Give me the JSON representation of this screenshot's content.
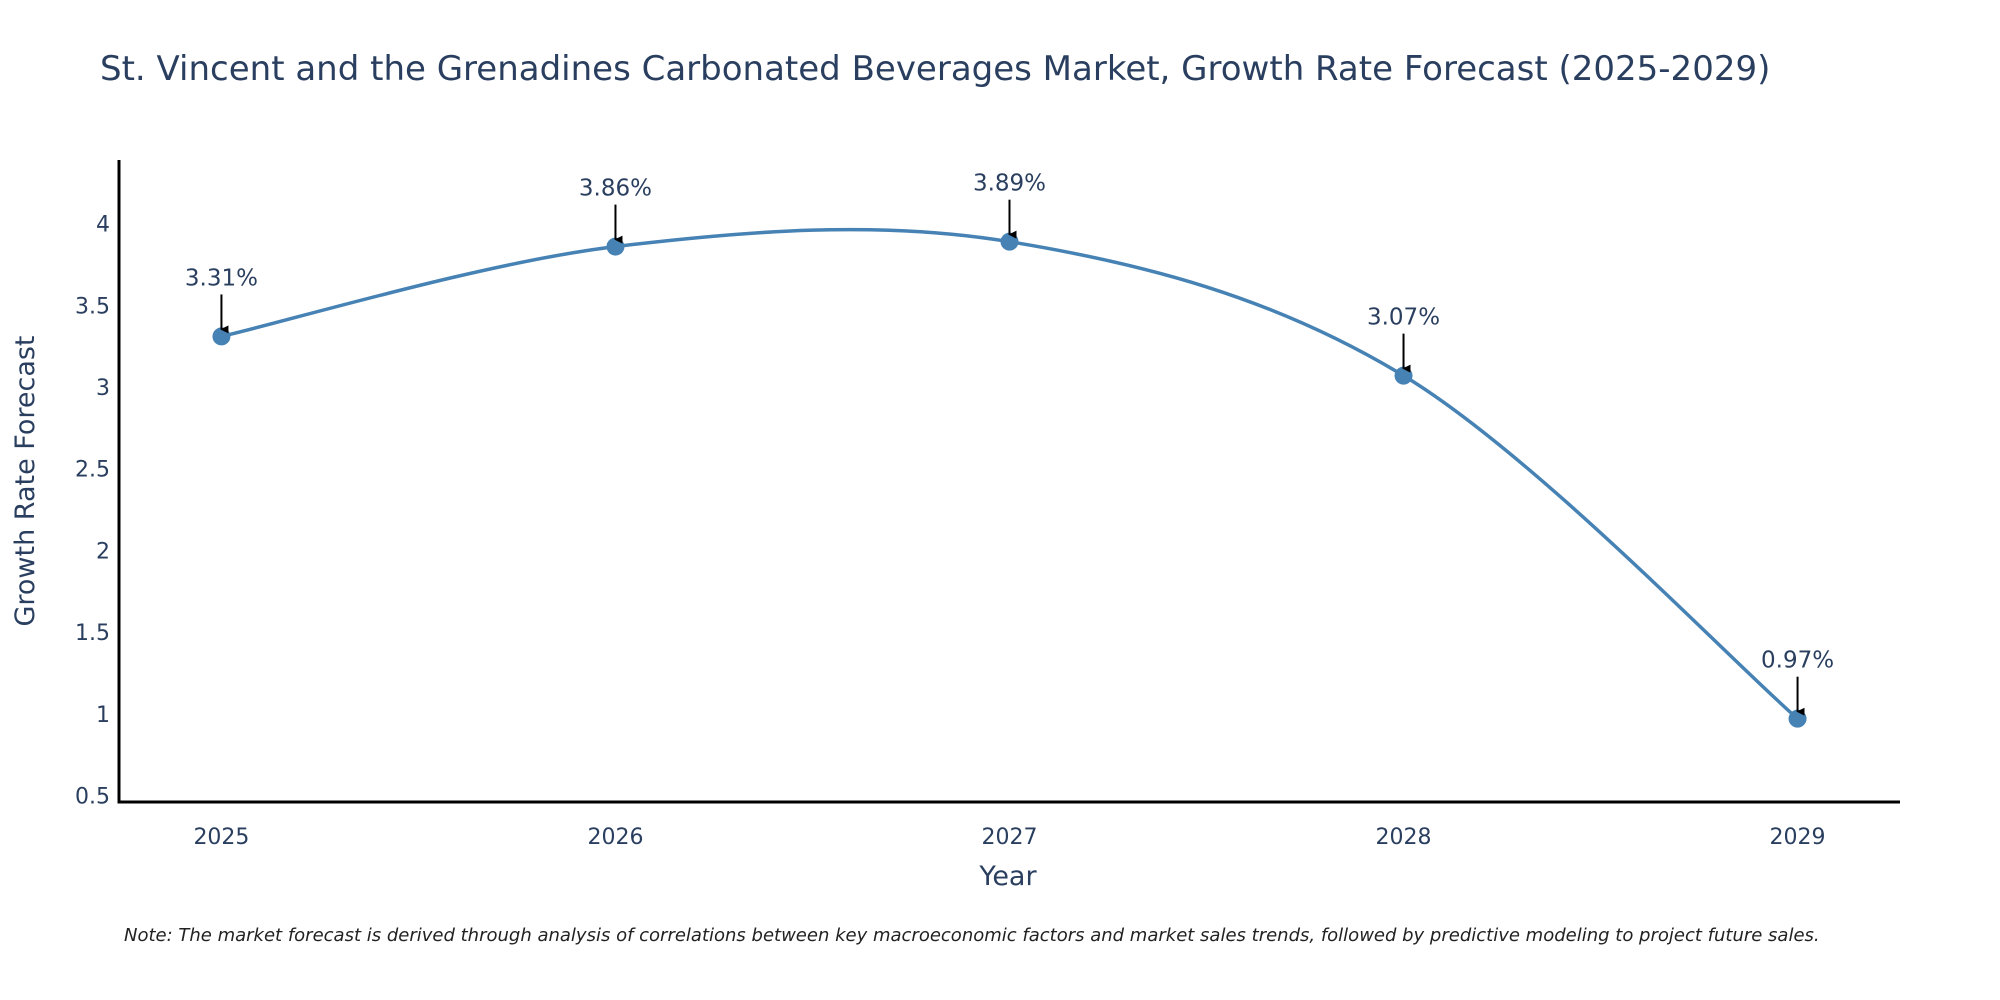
{
  "chart_data": {
    "type": "line",
    "title": "St. Vincent and the Grenadines Carbonated Beverages Market, Growth Rate Forecast (2025-2029)",
    "xlabel": "Year",
    "ylabel": "Growth Rate Forecast",
    "x": [
      2025,
      2026,
      2027,
      2028,
      2029
    ],
    "x_tick_labels": [
      "2025",
      "2026",
      "2027",
      "2028",
      "2029"
    ],
    "values": [
      3.31,
      3.86,
      3.89,
      3.07,
      0.97
    ],
    "annotations": [
      "3.31%",
      "3.86%",
      "3.89%",
      "3.07%",
      "0.97%"
    ],
    "y_ticks": [
      0.5,
      1,
      1.5,
      2,
      2.5,
      3,
      3.5,
      4
    ],
    "y_tick_labels": [
      "0.5",
      "1",
      "1.5",
      "2",
      "2.5",
      "3",
      "3.5",
      "4"
    ],
    "ylim": [
      0.46,
      4.39
    ],
    "xlim": [
      2024.74,
      2029.26
    ],
    "line_shape": "spline",
    "grid": false,
    "series_color": "#4682b4",
    "annotation_arrow_color": "#000000",
    "note": "Note: The market forecast is derived through analysis of correlations between key macroeconomic factors and market sales trends, followed by predictive modeling to project future sales."
  }
}
